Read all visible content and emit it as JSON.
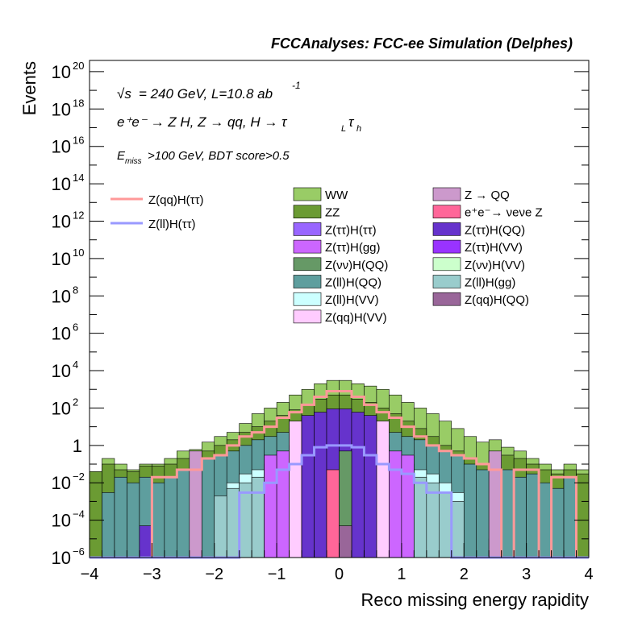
{
  "header": {
    "title": "FCCAnalyses: FCC-ee Simulation (Delphes)"
  },
  "annotations": {
    "line1_sqrt": "√s",
    "line1_rest": "= 240 GeV, L=10.8 ab",
    "line1_exp": "-1",
    "line2": "e⁺e⁻ → Z H, Z → qq, H → τ",
    "line2_sub1": "L",
    "line2_tau2": "τ",
    "line2_sub2": "h",
    "line3_e": "E",
    "line3_sub": "miss",
    "line3_rest": ">100 GeV, BDT score>0.5"
  },
  "chart_data": {
    "type": "bar",
    "title": "FCCAnalyses: FCC-ee Simulation (Delphes)",
    "xlabel": "Reco missing energy rapidity",
    "ylabel": "Events",
    "xlim": [
      -4,
      4
    ],
    "ylim_exp": [
      -6,
      20.6
    ],
    "yscale": "log",
    "x_ticks": [
      "−4",
      "−3",
      "−2",
      "−1",
      "0",
      "1",
      "2",
      "3",
      "4"
    ],
    "y_ticks": [
      {
        "base": "10",
        "exp": "−6",
        "v": -6
      },
      {
        "base": "10",
        "exp": "−4",
        "v": -4
      },
      {
        "base": "10",
        "exp": "−2",
        "v": -2
      },
      {
        "base": "1",
        "exp": "",
        "v": 0
      },
      {
        "base": "10",
        "exp": "2",
        "v": 2
      },
      {
        "base": "10",
        "exp": "4",
        "v": 4
      },
      {
        "base": "10",
        "exp": "6",
        "v": 6
      },
      {
        "base": "10",
        "exp": "8",
        "v": 8
      },
      {
        "base": "10",
        "exp": "10",
        "v": 10
      },
      {
        "base": "10",
        "exp": "12",
        "v": 12
      },
      {
        "base": "10",
        "exp": "14",
        "v": 14
      },
      {
        "base": "10",
        "exp": "16",
        "v": 16
      },
      {
        "base": "10",
        "exp": "18",
        "v": 18
      },
      {
        "base": "10",
        "exp": "20",
        "v": 20
      }
    ],
    "bin_width": 0.2,
    "bins_centers": [
      -3.9,
      -3.7,
      -3.5,
      -3.3,
      -3.1,
      -2.9,
      -2.7,
      -2.5,
      -2.3,
      -2.1,
      -1.9,
      -1.7,
      -1.5,
      -1.3,
      -1.1,
      -0.9,
      -0.7,
      -0.5,
      -0.3,
      -0.1,
      0.1,
      0.3,
      0.5,
      0.7,
      0.9,
      1.1,
      1.3,
      1.5,
      1.7,
      1.9,
      2.1,
      2.3,
      2.5,
      2.7,
      2.9,
      3.1,
      3.3,
      3.5,
      3.7,
      3.9
    ],
    "stack_envelopes": [
      {
        "name": "WW",
        "color": "#99cc66",
        "values": [
          0.04,
          0.2,
          0.1,
          0.05,
          0.1,
          0.1,
          0.2,
          0.5,
          0.6,
          1.5,
          3,
          5,
          15,
          50,
          100,
          200,
          500,
          1000,
          2000,
          3000,
          3000,
          2000,
          1500,
          1000,
          500,
          200,
          100,
          50,
          20,
          8,
          3,
          1.5,
          2,
          0.8,
          0.5,
          0.2,
          0.1,
          0.05,
          0.1,
          0.05
        ]
      },
      {
        "name": "ZZ",
        "color": "#6b9b33",
        "values": [
          0.04,
          0.1,
          0.05,
          0.04,
          0.08,
          0.08,
          0.1,
          0.2,
          0.3,
          0.5,
          1,
          2,
          5,
          10,
          20,
          40,
          80,
          150,
          300,
          500,
          500,
          300,
          200,
          100,
          50,
          20,
          8,
          3,
          1,
          0.5,
          0.2,
          0.1,
          0.5,
          0.3,
          0.2,
          0.1,
          0.05,
          0.03,
          0.05,
          0.03
        ]
      },
      {
        "name": "Z(ll)H(QQ)",
        "color": "#5e9e9e",
        "values": [
          0,
          0.003,
          0.02,
          0.01,
          0.02,
          0.01,
          0.02,
          0.05,
          0.1,
          0.2,
          0.3,
          0.5,
          1,
          2,
          3,
          5,
          8,
          15,
          20,
          30,
          30,
          20,
          12,
          8,
          5,
          3,
          2,
          1,
          0.5,
          0.3,
          0.1,
          0.05,
          0.1,
          0.05,
          0.02,
          0.03,
          0.01,
          0.005,
          0.02,
          0
        ]
      },
      {
        "name": "Z(ll)H(VV)",
        "color": "#ccffff",
        "values": [
          0,
          0,
          0,
          0,
          0,
          0,
          0,
          0,
          0,
          0,
          0,
          0.01,
          0.03,
          0.05,
          0.1,
          0.2,
          0.5,
          1,
          1,
          1.5,
          1.5,
          1,
          0.5,
          0.3,
          0.2,
          0.1,
          0.05,
          0.03,
          0.01,
          0.003,
          0,
          0,
          1e-05,
          0,
          0,
          0,
          0,
          0,
          0,
          0
        ]
      },
      {
        "name": "Z(ll)H(gg)",
        "color": "#99cccc",
        "values": [
          0,
          0,
          0,
          0,
          0,
          0,
          0,
          0,
          0,
          0,
          0.002,
          0.005,
          0.01,
          0.02,
          0.05,
          0.1,
          0.2,
          0.3,
          0.5,
          0.8,
          0.8,
          0.5,
          0.3,
          0.2,
          0.1,
          0.05,
          0.02,
          0.01,
          0.003,
          0.001,
          0,
          0,
          0,
          0,
          0,
          0,
          0,
          0,
          0,
          0
        ]
      },
      {
        "name": "Z(ττ)H(gg)",
        "color": "#cc66ff",
        "values": [
          0,
          0,
          0,
          0,
          0,
          0,
          0,
          0,
          0,
          0,
          0,
          0,
          0,
          0,
          0.3,
          0.5,
          1,
          2,
          3,
          5,
          5,
          3,
          2,
          1,
          0.5,
          0.3,
          0,
          0,
          0,
          0,
          0,
          0,
          0,
          0,
          0,
          0,
          0,
          0,
          0,
          0
        ]
      },
      {
        "name": "Z(qq)H(VV)",
        "color": "#ffccff",
        "values": [
          0,
          0,
          0,
          0,
          0,
          0,
          0,
          0,
          0,
          0,
          0,
          0,
          0,
          0,
          0,
          0,
          20,
          30,
          40,
          50,
          50,
          40,
          30,
          20,
          0,
          0,
          0,
          0,
          0,
          0,
          0,
          0,
          0,
          0,
          0,
          0,
          0,
          0,
          0,
          0
        ]
      },
      {
        "name": "Z(ττ)H(QQ)",
        "color": "#6633cc",
        "values": [
          0,
          0,
          0,
          0,
          5e-05,
          0,
          0,
          0,
          0,
          0,
          0,
          0,
          0,
          0,
          0,
          0,
          0,
          40,
          60,
          90,
          90,
          60,
          40,
          0,
          0,
          0,
          0,
          0,
          0,
          0,
          0,
          0,
          0,
          0,
          0,
          0,
          0,
          0,
          0,
          0
        ]
      },
      {
        "name": "Z→QQ",
        "color": "#cc99cc",
        "values": [
          0,
          0,
          0,
          0,
          0,
          0,
          0,
          0,
          0.5,
          0,
          0,
          0,
          0,
          0,
          0,
          0,
          0,
          0,
          0,
          0,
          0,
          0,
          0,
          0,
          0,
          0,
          0,
          0,
          0,
          0,
          0,
          0,
          0.5,
          0,
          0,
          0,
          0,
          0,
          0,
          0
        ]
      },
      {
        "name": "e⁺e⁻→νeνeZ",
        "color": "#ff6699",
        "values": [
          0,
          0,
          0,
          0,
          0,
          0,
          0,
          0,
          0,
          0,
          0,
          0,
          0,
          0,
          0,
          0,
          0,
          0,
          0,
          0.05,
          0,
          0,
          0,
          0,
          0,
          0,
          0,
          0,
          0,
          0,
          0,
          0,
          0,
          0,
          0,
          0,
          0,
          0,
          0,
          0
        ]
      },
      {
        "name": "Z(νν)H(QQ)",
        "color": "#669966",
        "values": [
          0,
          0,
          0,
          0,
          0,
          0,
          0,
          0,
          0,
          0,
          0,
          0,
          0,
          0,
          0,
          0,
          0,
          0,
          0,
          0,
          0.5,
          0,
          0,
          0,
          0,
          0,
          0,
          0,
          0,
          0,
          0,
          0,
          0,
          0,
          0,
          0,
          0,
          0,
          0,
          0
        ]
      },
      {
        "name": "Z(qq)H(QQ)",
        "color": "#996699",
        "values": [
          0,
          0,
          0,
          0,
          0,
          0,
          0,
          0,
          0,
          0,
          0,
          0,
          0,
          0,
          0,
          0,
          0,
          0,
          0,
          0,
          5e-05,
          0,
          0,
          0,
          0,
          0,
          0,
          0,
          0,
          0,
          0,
          0,
          0,
          0,
          0,
          0,
          0,
          0,
          0,
          0
        ]
      }
    ],
    "line_series": [
      {
        "name": "Z(qq)H(ττ)",
        "color": "#ff9999",
        "values": [
          0,
          0,
          0,
          0,
          0,
          0.02,
          0.02,
          0.05,
          0.05,
          0.2,
          0.3,
          1,
          3,
          5,
          10,
          30,
          60,
          150,
          400,
          800,
          800,
          400,
          150,
          60,
          30,
          10,
          3,
          1,
          0.5,
          0.3,
          0.2,
          0.1,
          0.05,
          1e-06,
          0.05,
          0.05,
          1e-06,
          0.02,
          0.02,
          0
        ]
      },
      {
        "name": "Z(ll)H(ττ)",
        "color": "#9999ff",
        "values": [
          0,
          0,
          0,
          0,
          0,
          0,
          0,
          0,
          0,
          0,
          0,
          0,
          0.003,
          0.003,
          0.01,
          0.05,
          0.1,
          0.3,
          0.8,
          1,
          1,
          0.8,
          0.3,
          0.1,
          0.05,
          0.03,
          0.01,
          0.003,
          0.003,
          0,
          0,
          0,
          0,
          0,
          0,
          0,
          0,
          0,
          0,
          0
        ]
      }
    ],
    "legend_lines": [
      {
        "name": "Z(qq)H(ττ)",
        "color": "#ff9999"
      },
      {
        "name": "Z(ll)H(ττ)",
        "color": "#9999ff"
      }
    ],
    "legend_fills": [
      {
        "name": "WW",
        "color": "#99cc66"
      },
      {
        "name": "Z → QQ",
        "color": "#cc99cc"
      },
      {
        "name": "ZZ",
        "color": "#6b9b33"
      },
      {
        "name": "e⁺e⁻→ νeνe Z",
        "color": "#ff6699"
      },
      {
        "name": "Z(ττ)H(ττ)",
        "color": "#9966ff"
      },
      {
        "name": "Z(ττ)H(QQ)",
        "color": "#6633cc"
      },
      {
        "name": "Z(ττ)H(gg)",
        "color": "#cc66ff"
      },
      {
        "name": "Z(ττ)H(VV)",
        "color": "#9933ff"
      },
      {
        "name": "Z(νν)H(QQ)",
        "color": "#669966"
      },
      {
        "name": "Z(νν)H(VV)",
        "color": "#ccffcc"
      },
      {
        "name": "Z(ll)H(QQ)",
        "color": "#5e9e9e"
      },
      {
        "name": "Z(ll)H(gg)",
        "color": "#99cccc"
      },
      {
        "name": "Z(ll)H(VV)",
        "color": "#ccffff"
      },
      {
        "name": "Z(qq)H(QQ)",
        "color": "#996699"
      },
      {
        "name": "Z(qq)H(VV)",
        "color": "#ffccff"
      }
    ]
  }
}
